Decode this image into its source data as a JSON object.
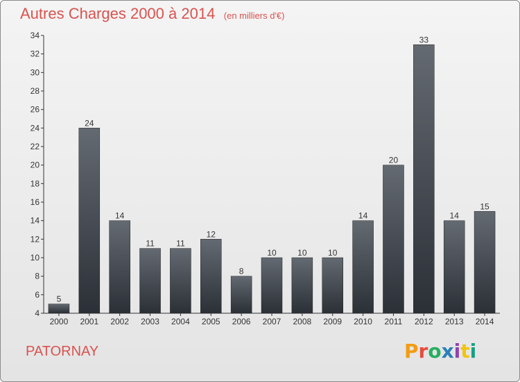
{
  "header": {
    "title": "Autres Charges 2000 à 2014",
    "subtitle": "(en milliers d'€)"
  },
  "footer": {
    "commune": "PATORNAY",
    "logo_text": "Proxiti"
  },
  "colors": {
    "accent": "#d9534f",
    "bar_top": "#646a71",
    "bar_bottom": "#2b3037",
    "logo_letters": [
      "#f39c12",
      "#e74c3c",
      "#27ae60",
      "#2980b9",
      "#8e44ad",
      "#f1c40f",
      "#16a085"
    ]
  },
  "chart_data": {
    "type": "bar",
    "title": "Autres Charges 2000 à 2014",
    "subtitle": "(en milliers d'€)",
    "categories": [
      "2000",
      "2001",
      "2002",
      "2003",
      "2004",
      "2005",
      "2006",
      "2007",
      "2008",
      "2009",
      "2010",
      "2011",
      "2012",
      "2013",
      "2014"
    ],
    "values": [
      5,
      24,
      14,
      11,
      11,
      12,
      8,
      10,
      10,
      10,
      14,
      20,
      33,
      14,
      15
    ],
    "ylim": [
      4,
      34
    ],
    "yticks": [
      4,
      6,
      8,
      10,
      12,
      14,
      16,
      18,
      20,
      22,
      24,
      26,
      28,
      30,
      32,
      34
    ],
    "xlabel": "",
    "ylabel": "",
    "grid": false,
    "data_labels": true
  }
}
